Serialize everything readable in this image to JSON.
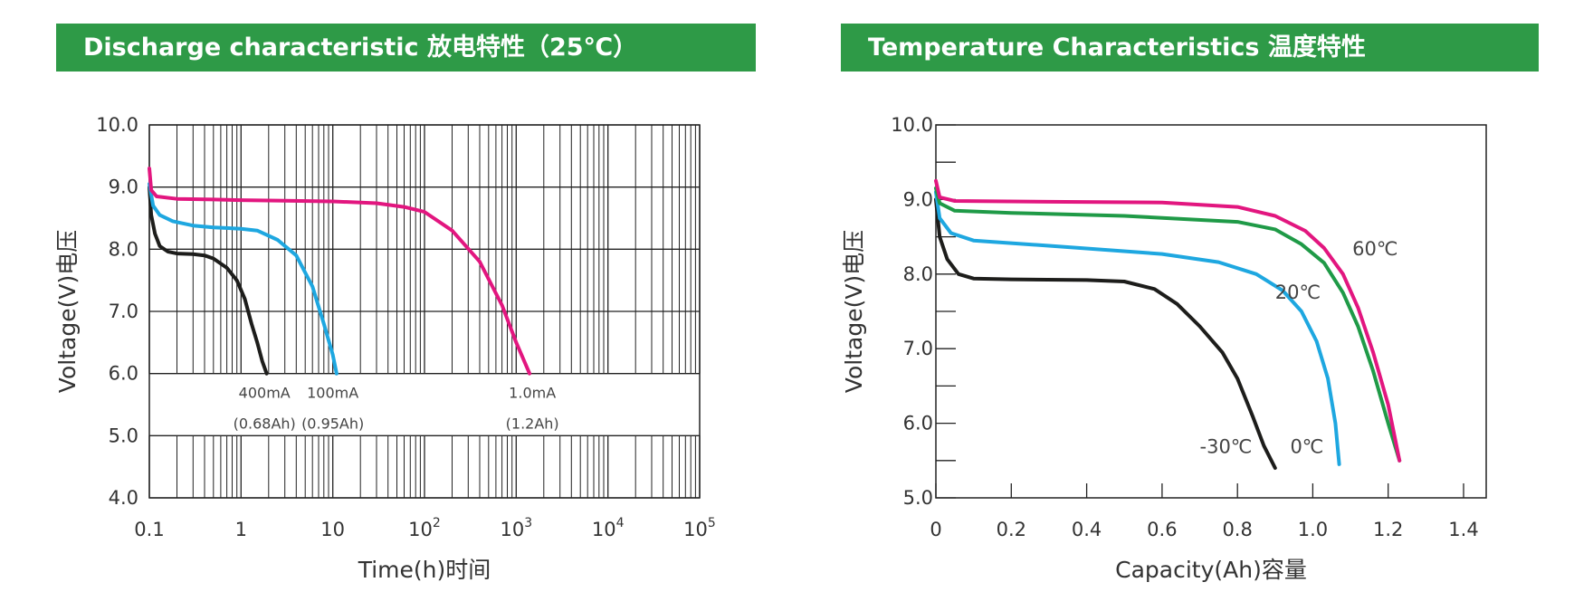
{
  "charts": {
    "discharge": {
      "header": "Discharge characteristic  放电特性（25℃）"
    },
    "temperature": {
      "header": "Temperature Characteristics  温度特性"
    }
  },
  "chart_data": [
    {
      "type": "line",
      "title": "Discharge characteristic  放电特性（25℃）",
      "xlabel": "Time(h)时间",
      "ylabel": "Voltage(V)电压",
      "x_scale": "log",
      "xlim": [
        0.1,
        100000
      ],
      "ylim": [
        4.0,
        10.0
      ],
      "x_ticks": [
        {
          "value": 0.1,
          "base": "0.1",
          "exp": ""
        },
        {
          "value": 1,
          "base": "1",
          "exp": ""
        },
        {
          "value": 10,
          "base": "10",
          "exp": ""
        },
        {
          "value": 100,
          "base": "10",
          "exp": "2"
        },
        {
          "value": 1000,
          "base": "10",
          "exp": "3"
        },
        {
          "value": 10000,
          "base": "10",
          "exp": "4"
        },
        {
          "value": 100000,
          "base": "10",
          "exp": "5"
        }
      ],
      "y_ticks": [
        "4.0",
        "5.0",
        "6.0",
        "7.0",
        "8.0",
        "9.0",
        "10.0"
      ],
      "grid": true,
      "series": [
        {
          "color": "#1d1d1b",
          "x": [
            0.1,
            0.105,
            0.115,
            0.13,
            0.16,
            0.2,
            0.3,
            0.4,
            0.5,
            0.7,
            0.9,
            1.1,
            1.3,
            1.5,
            1.7,
            1.9
          ],
          "y": [
            9.0,
            8.55,
            8.25,
            8.05,
            7.96,
            7.93,
            7.92,
            7.9,
            7.85,
            7.7,
            7.5,
            7.2,
            6.8,
            6.5,
            6.2,
            6.0
          ]
        },
        {
          "color": "#1ea7e0",
          "x": [
            0.1,
            0.11,
            0.13,
            0.18,
            0.3,
            0.5,
            1,
            1.5,
            2.5,
            4,
            6,
            8,
            10,
            11
          ],
          "y": [
            9.05,
            8.7,
            8.55,
            8.45,
            8.38,
            8.35,
            8.33,
            8.3,
            8.15,
            7.9,
            7.4,
            6.8,
            6.3,
            6.0
          ]
        },
        {
          "color": "#e2167f",
          "x": [
            0.1,
            0.105,
            0.12,
            0.2,
            0.5,
            1,
            3,
            10,
            30,
            60,
            100,
            200,
            400,
            700,
            1000,
            1400
          ],
          "y": [
            9.3,
            8.95,
            8.85,
            8.81,
            8.8,
            8.79,
            8.78,
            8.77,
            8.74,
            8.68,
            8.6,
            8.3,
            7.8,
            7.1,
            6.5,
            6.0
          ]
        }
      ],
      "annotations": [
        {
          "text": "400mA",
          "x": 1.8,
          "y": 5.7
        },
        {
          "text": "(0.68Ah)",
          "x": 1.8,
          "y": 5.2
        },
        {
          "text": "100mA",
          "x": 10,
          "y": 5.7
        },
        {
          "text": "(0.95Ah)",
          "x": 10,
          "y": 5.2
        },
        {
          "text": "1.0mA",
          "x": 1500,
          "y": 5.7
        },
        {
          "text": "(1.2Ah)",
          "x": 1500,
          "y": 5.2
        }
      ]
    },
    {
      "type": "line",
      "title": "Temperature Characteristics  温度特性",
      "xlabel": "Capacity(Ah)容量",
      "ylabel": "Voltage(V)电压",
      "xlim": [
        0,
        1.46
      ],
      "ylim": [
        5.0,
        10.0
      ],
      "x_ticks": [
        "0",
        "0.2",
        "0.4",
        "0.6",
        "0.8",
        "1.0",
        "1.2",
        "1.4"
      ],
      "y_ticks": [
        "5.0",
        "6.0",
        "7.0",
        "8.0",
        "9.0",
        "10.0"
      ],
      "grid": false,
      "series": [
        {
          "name": "-30℃",
          "color": "#1d1d1b",
          "x": [
            0,
            0.01,
            0.03,
            0.06,
            0.1,
            0.2,
            0.4,
            0.5,
            0.58,
            0.64,
            0.7,
            0.76,
            0.8,
            0.84,
            0.87,
            0.9
          ],
          "y": [
            9.0,
            8.5,
            8.2,
            8.0,
            7.94,
            7.93,
            7.92,
            7.9,
            7.8,
            7.6,
            7.3,
            6.95,
            6.6,
            6.1,
            5.7,
            5.4
          ]
        },
        {
          "name": "0℃",
          "color": "#1ea7e0",
          "x": [
            0,
            0.01,
            0.04,
            0.1,
            0.3,
            0.6,
            0.75,
            0.85,
            0.92,
            0.97,
            1.01,
            1.04,
            1.06,
            1.07
          ],
          "y": [
            9.1,
            8.75,
            8.55,
            8.45,
            8.38,
            8.27,
            8.16,
            8.0,
            7.78,
            7.5,
            7.1,
            6.6,
            6.0,
            5.45
          ]
        },
        {
          "name": "20℃",
          "color": "#1f9a47",
          "x": [
            0,
            0.01,
            0.05,
            0.2,
            0.5,
            0.8,
            0.9,
            0.97,
            1.03,
            1.08,
            1.12,
            1.16,
            1.2,
            1.23
          ],
          "y": [
            9.15,
            8.95,
            8.85,
            8.82,
            8.78,
            8.7,
            8.6,
            8.4,
            8.15,
            7.75,
            7.3,
            6.7,
            6.0,
            5.5
          ]
        },
        {
          "name": "60℃",
          "color": "#e2167f",
          "x": [
            0,
            0.01,
            0.05,
            0.3,
            0.6,
            0.8,
            0.9,
            0.98,
            1.03,
            1.08,
            1.12,
            1.16,
            1.2,
            1.23
          ],
          "y": [
            9.25,
            9.03,
            8.98,
            8.97,
            8.96,
            8.9,
            8.78,
            8.58,
            8.35,
            8.0,
            7.55,
            6.95,
            6.25,
            5.5
          ]
        }
      ],
      "series_labels": [
        {
          "text": "60℃",
          "x": 1.105,
          "y": 8.25
        },
        {
          "text": "20℃",
          "x": 0.9,
          "y": 7.67
        },
        {
          "text": "-30℃",
          "x": 0.7,
          "y": 5.6
        },
        {
          "text": "0℃",
          "x": 0.94,
          "y": 5.6
        }
      ]
    }
  ]
}
